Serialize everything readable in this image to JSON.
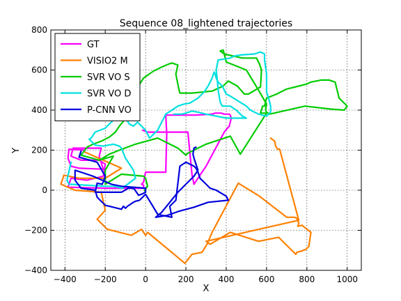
{
  "chart_data": {
    "type": "line",
    "title": "Sequence 08_lightened trajectories",
    "xlabel": "X",
    "ylabel": "Y",
    "xlim": [
      -470,
      1070
    ],
    "ylim": [
      -400,
      800
    ],
    "xticks": [
      -400,
      -200,
      0,
      200,
      400,
      600,
      800,
      1000
    ],
    "yticks": [
      -400,
      -200,
      0,
      200,
      400,
      600,
      800
    ],
    "grid": true,
    "legend_position": "top-left",
    "series": [
      {
        "name": "GT",
        "color": "#ff00ff",
        "points": [
          [
            -300,
            200
          ],
          [
            -380,
            205
          ],
          [
            -385,
            160
          ],
          [
            -370,
            120
          ],
          [
            -330,
            110
          ],
          [
            -210,
            105
          ],
          [
            -230,
            170
          ],
          [
            -220,
            210
          ],
          [
            -360,
            210
          ],
          [
            -370,
            170
          ],
          [
            -320,
            150
          ],
          [
            -230,
            150
          ],
          [
            -200,
            130
          ],
          [
            -210,
            70
          ],
          [
            -290,
            50
          ],
          [
            -370,
            60
          ],
          [
            -385,
            15
          ],
          [
            -200,
            10
          ],
          [
            -10,
            10
          ],
          [
            -10,
            25
          ],
          [
            -20,
            30
          ],
          [
            -10,
            40
          ],
          [
            0,
            90
          ],
          [
            100,
            90
          ],
          [
            105,
            280
          ],
          [
            100,
            375
          ],
          [
            250,
            375
          ],
          [
            330,
            380
          ],
          [
            345,
            385
          ],
          [
            375,
            385
          ],
          [
            390,
            380
          ],
          [
            415,
            380
          ],
          [
            420,
            375
          ],
          [
            425,
            360
          ],
          [
            415,
            320
          ],
          [
            390,
            290
          ],
          [
            300,
            120
          ],
          [
            240,
            30
          ],
          [
            230,
            80
          ],
          [
            210,
            290
          ],
          [
            10,
            290
          ],
          [
            -15,
            300
          ]
        ]
      },
      {
        "name": "VISIO2 M",
        "color": "#ff8000",
        "points": [
          [
            -300,
            190
          ],
          [
            -120,
            110
          ],
          [
            -200,
            60
          ],
          [
            -330,
            60
          ],
          [
            -405,
            75
          ],
          [
            -420,
            30
          ],
          [
            -350,
            0
          ],
          [
            -220,
            -10
          ],
          [
            -200,
            -100
          ],
          [
            -240,
            -145
          ],
          [
            -190,
            -195
          ],
          [
            -70,
            -225
          ],
          [
            -20,
            -195
          ],
          [
            0,
            -225
          ],
          [
            10,
            -210
          ],
          [
            195,
            -365
          ],
          [
            230,
            -320
          ],
          [
            280,
            -310
          ],
          [
            305,
            -270
          ],
          [
            330,
            -210
          ],
          [
            460,
            35
          ],
          [
            565,
            -30
          ],
          [
            700,
            -135
          ],
          [
            740,
            -135
          ],
          [
            750,
            -140
          ],
          [
            760,
            -165
          ],
          [
            755,
            -180
          ],
          [
            775,
            -175
          ],
          [
            820,
            -210
          ],
          [
            810,
            -280
          ],
          [
            795,
            -295
          ],
          [
            770,
            -305
          ],
          [
            750,
            -310
          ],
          [
            745,
            -320
          ],
          [
            660,
            -235
          ],
          [
            560,
            -255
          ],
          [
            420,
            -210
          ],
          [
            320,
            -270
          ],
          [
            300,
            -255
          ],
          [
            760,
            -150
          ],
          [
            665,
            205
          ],
          [
            655,
            205
          ],
          [
            645,
            220
          ],
          [
            640,
            245
          ],
          [
            620,
            260
          ]
        ]
      },
      {
        "name": "SVR VO S",
        "color": "#00cc00",
        "points": [
          [
            -230,
            150
          ],
          [
            -320,
            175
          ],
          [
            -290,
            215
          ],
          [
            -260,
            230
          ],
          [
            -220,
            245
          ],
          [
            -180,
            265
          ],
          [
            -150,
            290
          ],
          [
            -130,
            320
          ],
          [
            -110,
            345
          ],
          [
            -100,
            420
          ],
          [
            -10,
            560
          ],
          [
            40,
            595
          ],
          [
            50,
            600
          ],
          [
            80,
            615
          ],
          [
            115,
            630
          ],
          [
            130,
            635
          ],
          [
            160,
            625
          ],
          [
            150,
            580
          ],
          [
            165,
            505
          ],
          [
            170,
            485
          ],
          [
            230,
            485
          ],
          [
            330,
            495
          ],
          [
            385,
            520
          ],
          [
            410,
            545
          ],
          [
            455,
            520
          ],
          [
            490,
            480
          ],
          [
            510,
            480
          ],
          [
            560,
            510
          ],
          [
            570,
            515
          ],
          [
            575,
            600
          ],
          [
            565,
            630
          ],
          [
            555,
            650
          ],
          [
            550,
            660
          ],
          [
            480,
            660
          ],
          [
            390,
            680
          ],
          [
            370,
            695
          ],
          [
            385,
            700
          ],
          [
            400,
            640
          ],
          [
            500,
            600
          ],
          [
            560,
            500
          ],
          [
            600,
            430
          ],
          [
            595,
            400
          ],
          [
            600,
            390
          ],
          [
            615,
            380
          ],
          [
            790,
            420
          ],
          [
            920,
            405
          ],
          [
            985,
            400
          ],
          [
            1000,
            420
          ],
          [
            990,
            430
          ],
          [
            960,
            460
          ],
          [
            940,
            540
          ],
          [
            910,
            550
          ],
          [
            870,
            550
          ],
          [
            820,
            540
          ],
          [
            800,
            530
          ],
          [
            760,
            520
          ],
          [
            700,
            505
          ],
          [
            650,
            480
          ],
          [
            600,
            460
          ],
          [
            590,
            420
          ],
          [
            580,
            420
          ],
          [
            575,
            400
          ],
          [
            570,
            385
          ],
          [
            600,
            385
          ],
          [
            470,
            180
          ],
          [
            420,
            270
          ],
          [
            300,
            230
          ],
          [
            210,
            185
          ],
          [
            200,
            175
          ],
          [
            160,
            210
          ],
          [
            60,
            260
          ],
          [
            -50,
            230
          ],
          [
            -130,
            200
          ],
          [
            -180,
            180
          ],
          [
            -230,
            150
          ],
          [
            -160,
            170
          ],
          [
            -200,
            100
          ],
          [
            -200,
            30
          ],
          [
            -120,
            80
          ],
          [
            -10,
            70
          ],
          [
            0,
            60
          ],
          [
            10,
            20
          ],
          [
            -5,
            0
          ],
          [
            0,
            -10
          ]
        ]
      },
      {
        "name": "SVR VO D",
        "color": "#00e0e0",
        "points": [
          [
            -370,
            140
          ],
          [
            -390,
            50
          ],
          [
            -380,
            30
          ],
          [
            -200,
            20
          ],
          [
            -160,
            20
          ],
          [
            -115,
            10
          ],
          [
            -50,
            60
          ],
          [
            -60,
            100
          ],
          [
            -100,
            160
          ],
          [
            -120,
            210
          ],
          [
            -130,
            220
          ],
          [
            -160,
            230
          ],
          [
            -210,
            220
          ],
          [
            -250,
            225
          ],
          [
            -280,
            255
          ],
          [
            -270,
            260
          ],
          [
            -250,
            290
          ],
          [
            -200,
            310
          ],
          [
            -170,
            340
          ],
          [
            -140,
            370
          ],
          [
            -100,
            365
          ],
          [
            -90,
            345
          ],
          [
            -80,
            330
          ],
          [
            -60,
            320
          ],
          [
            -50,
            330
          ],
          [
            -40,
            340
          ],
          [
            -20,
            320
          ],
          [
            -10,
            310
          ],
          [
            0,
            300
          ],
          [
            10,
            280
          ],
          [
            20,
            260
          ],
          [
            60,
            300
          ],
          [
            100,
            380
          ],
          [
            160,
            420
          ],
          [
            190,
            430
          ],
          [
            220,
            435
          ],
          [
            260,
            460
          ],
          [
            290,
            490
          ],
          [
            310,
            520
          ],
          [
            330,
            560
          ],
          [
            340,
            590
          ],
          [
            345,
            580
          ],
          [
            350,
            560
          ],
          [
            360,
            540
          ],
          [
            380,
            520
          ],
          [
            390,
            500
          ],
          [
            400,
            480
          ],
          [
            420,
            470
          ],
          [
            500,
            420
          ],
          [
            520,
            400
          ],
          [
            560,
            380
          ],
          [
            600,
            370
          ],
          [
            620,
            390
          ],
          [
            620,
            420
          ],
          [
            610,
            460
          ],
          [
            600,
            490
          ],
          [
            600,
            580
          ],
          [
            590,
            650
          ],
          [
            590,
            680
          ],
          [
            570,
            690
          ],
          [
            540,
            680
          ],
          [
            470,
            675
          ],
          [
            440,
            670
          ],
          [
            420,
            660
          ],
          [
            360,
            650
          ],
          [
            350,
            600
          ],
          [
            355,
            560
          ],
          [
            360,
            500
          ],
          [
            370,
            440
          ],
          [
            380,
            420
          ],
          [
            420,
            420
          ],
          [
            450,
            400
          ],
          [
            470,
            380
          ],
          [
            480,
            370
          ],
          [
            500,
            360
          ],
          [
            400,
            360
          ],
          [
            300,
            380
          ],
          [
            260,
            390
          ],
          [
            230,
            395
          ],
          [
            200,
            385
          ],
          [
            180,
            380
          ],
          [
            160,
            380
          ],
          [
            140,
            380
          ]
        ]
      },
      {
        "name": "P-CNN VO",
        "color": "#0000dd",
        "points": [
          [
            -320,
            195
          ],
          [
            -330,
            165
          ],
          [
            -240,
            140
          ],
          [
            -200,
            70
          ],
          [
            -215,
            30
          ],
          [
            -240,
            35
          ],
          [
            -250,
            -10
          ],
          [
            -120,
            -10
          ],
          [
            -85,
            10
          ],
          [
            -65,
            10
          ],
          [
            -55,
            5
          ],
          [
            -35,
            -25
          ],
          [
            -20,
            -20
          ],
          [
            0,
            -10
          ],
          [
            0,
            10
          ],
          [
            -120,
            20
          ],
          [
            -170,
            30
          ],
          [
            -260,
            70
          ],
          [
            -350,
            100
          ],
          [
            -350,
            50
          ],
          [
            -320,
            10
          ],
          [
            -250,
            0
          ],
          [
            -240,
            -35
          ],
          [
            -200,
            -75
          ],
          [
            -120,
            -95
          ],
          [
            -110,
            -80
          ],
          [
            -100,
            -90
          ],
          [
            -90,
            -80
          ],
          [
            -60,
            -60
          ],
          [
            -50,
            -55
          ],
          [
            -30,
            -50
          ],
          [
            0,
            -20
          ],
          [
            60,
            -120
          ],
          [
            80,
            -125
          ],
          [
            130,
            -135
          ],
          [
            120,
            -80
          ],
          [
            150,
            -50
          ],
          [
            170,
            120
          ],
          [
            200,
            140
          ],
          [
            220,
            130
          ],
          [
            240,
            120
          ],
          [
            250,
            110
          ],
          [
            260,
            90
          ],
          [
            270,
            60
          ],
          [
            290,
            40
          ],
          [
            320,
            10
          ],
          [
            350,
            0
          ],
          [
            400,
            -30
          ],
          [
            410,
            -50
          ],
          [
            310,
            -60
          ],
          [
            240,
            -85
          ],
          [
            165,
            -105
          ],
          [
            110,
            -125
          ],
          [
            80,
            -130
          ],
          [
            50,
            -135
          ],
          [
            80,
            -110
          ],
          [
            120,
            -60
          ],
          [
            160,
            -10
          ],
          [
            200,
            30
          ],
          [
            240,
            70
          ],
          [
            260,
            100
          ],
          [
            250,
            130
          ],
          [
            240,
            160
          ],
          [
            235,
            180
          ],
          [
            240,
            210
          ],
          [
            250,
            215
          ]
        ]
      }
    ]
  }
}
